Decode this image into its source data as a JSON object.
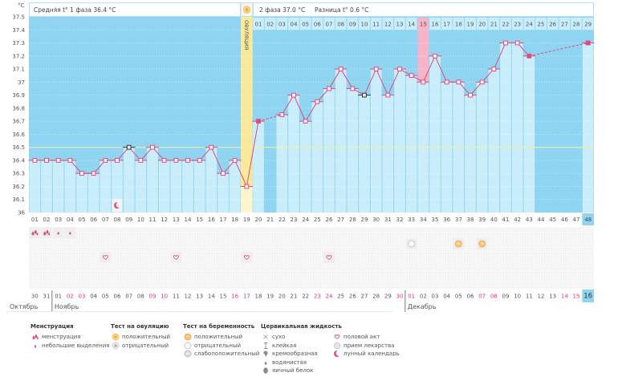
{
  "header": {
    "unit": "°C",
    "phase1_summary": "Средняя t° 1 фаза 36.4 °C",
    "phase2_summary": "2 фаза 37.0 °C",
    "difference": "Разница t° 0.6 °C",
    "ovulation_icon": "sun-icon"
  },
  "colors": {
    "plot_bg": "#8fd5f2",
    "bar": "#c9edfb",
    "ovulation": "#fbe99b",
    "ovulation_light": "#fdf6cc",
    "highlight": "#f7b3c7",
    "line": "#e5487e",
    "excluded": "#333333",
    "coverline": "#f1ee9e",
    "weekend": "#e8336e",
    "text": "#555555"
  },
  "chart_data": {
    "type": "line",
    "title": "",
    "xlabel": "",
    "ylabel": "°C",
    "ylim": [
      36,
      37.5
    ],
    "grid": true,
    "yticks": [
      "37.5",
      "37.4",
      "37.3",
      "37.2",
      "37.1",
      "37",
      "36.9",
      "36.8",
      "36.7",
      "36.6",
      "36.5",
      "36.4",
      "36.3",
      "36.2",
      "36.1",
      "36"
    ],
    "categories": [
      "01",
      "02",
      "03",
      "04",
      "05",
      "06",
      "07",
      "08",
      "09",
      "10",
      "11",
      "12",
      "13",
      "14",
      "15",
      "16",
      "17",
      "18",
      "19",
      "20",
      "21",
      "22",
      "23",
      "24",
      "25",
      "26",
      "27",
      "28",
      "29",
      "30",
      "31",
      "32",
      "33",
      "34",
      "35",
      "36",
      "37",
      "38",
      "39",
      "40",
      "41",
      "42",
      "43",
      "44",
      "45",
      "46",
      "47",
      "48"
    ],
    "series": [
      {
        "name": "°C",
        "values": [
          36.4,
          36.4,
          36.4,
          36.4,
          36.3,
          36.3,
          36.4,
          36.4,
          36.5,
          36.4,
          36.5,
          36.4,
          36.4,
          36.4,
          36.4,
          36.5,
          36.3,
          36.4,
          36.2,
          36.7,
          null,
          36.75,
          36.9,
          36.7,
          36.85,
          36.95,
          37.1,
          36.95,
          36.9,
          37.1,
          36.9,
          37.1,
          37.05,
          37.0,
          37.2,
          37.0,
          37.0,
          36.9,
          37.0,
          37.1,
          37.3,
          37.3,
          37.2,
          null,
          null,
          null,
          null,
          37.3
        ]
      }
    ],
    "coverline": 36.5,
    "ovulation_day": 19,
    "ovulation_label": "ОВУЛЯЦИЯ",
    "excluded_days": [
      9,
      29
    ],
    "phase2_start_day": 20,
    "phase2_day_labels": [
      "01",
      "02",
      "03",
      "04",
      "05",
      "06",
      "07",
      "08",
      "09",
      "10",
      "11",
      "12",
      "13",
      "14",
      "15",
      "16",
      "17",
      "18",
      "19",
      "20",
      "21",
      "22",
      "23",
      "24",
      "25",
      "26",
      "27",
      "28",
      "29"
    ],
    "highlighted_day": 34,
    "current_day": 48
  },
  "markers": {
    "menstruation": [
      {
        "day": 1,
        "type": "heavy"
      },
      {
        "day": 2,
        "type": "heavy"
      },
      {
        "day": 3,
        "type": "light"
      },
      {
        "day": 4,
        "type": "light"
      }
    ],
    "tests": [
      {
        "day": 33,
        "type": "pregnancy-negative"
      },
      {
        "day": 37,
        "type": "pregnancy-positive"
      },
      {
        "day": 39,
        "type": "pregnancy-positive"
      }
    ],
    "intercourse": [
      7,
      13,
      19,
      26
    ],
    "moon": [
      8
    ]
  },
  "calendar": {
    "dates": [
      {
        "d": "30"
      },
      {
        "d": "31"
      },
      {
        "d": "01"
      },
      {
        "d": "02",
        "weekend": true
      },
      {
        "d": "03",
        "weekend": true
      },
      {
        "d": "04"
      },
      {
        "d": "05"
      },
      {
        "d": "06"
      },
      {
        "d": "07"
      },
      {
        "d": "08"
      },
      {
        "d": "09",
        "weekend": true
      },
      {
        "d": "10",
        "weekend": true
      },
      {
        "d": "11"
      },
      {
        "d": "12"
      },
      {
        "d": "13"
      },
      {
        "d": "14"
      },
      {
        "d": "15"
      },
      {
        "d": "16",
        "weekend": true
      },
      {
        "d": "17",
        "weekend": true
      },
      {
        "d": "18"
      },
      {
        "d": "19"
      },
      {
        "d": "20"
      },
      {
        "d": "21"
      },
      {
        "d": "22"
      },
      {
        "d": "23",
        "weekend": true
      },
      {
        "d": "24",
        "weekend": true
      },
      {
        "d": "25"
      },
      {
        "d": "26"
      },
      {
        "d": "27"
      },
      {
        "d": "28"
      },
      {
        "d": "29"
      },
      {
        "d": "30",
        "weekend": true
      },
      {
        "d": "01",
        "weekend": true
      },
      {
        "d": "02"
      },
      {
        "d": "03"
      },
      {
        "d": "04"
      },
      {
        "d": "05"
      },
      {
        "d": "06"
      },
      {
        "d": "07",
        "weekend": true
      },
      {
        "d": "08",
        "weekend": true
      },
      {
        "d": "09"
      },
      {
        "d": "10"
      },
      {
        "d": "11"
      },
      {
        "d": "12"
      },
      {
        "d": "13"
      },
      {
        "d": "14",
        "weekend": true
      },
      {
        "d": "15",
        "weekend": true
      },
      {
        "d": "16"
      }
    ],
    "months": [
      {
        "label": "Октябрь",
        "start_day": 1
      },
      {
        "label": "Ноябрь",
        "start_day": 3
      },
      {
        "label": "Декабрь",
        "start_day": 33
      }
    ],
    "today_day": 48
  },
  "legend": [
    {
      "title": "Менструация",
      "items": [
        {
          "icon": "menstruation-heavy",
          "label": "менструация"
        },
        {
          "icon": "menstruation-light",
          "label": "небольшие выделения"
        }
      ]
    },
    {
      "title": "Тест на овуляцию",
      "items": [
        {
          "icon": "ovulation-test-positive",
          "label": "положительный"
        },
        {
          "icon": "ovulation-test-negative",
          "label": "отрицательный"
        }
      ]
    },
    {
      "title": "Тест на беременность",
      "items": [
        {
          "icon": "pregnancy-test-positive",
          "label": "положительный"
        },
        {
          "icon": "pregnancy-test-negative",
          "label": "отрицательный"
        },
        {
          "icon": "pregnancy-test-weak",
          "label": "слабоположительный"
        }
      ]
    },
    {
      "title": "Цервикальная жидкость",
      "items": [
        {
          "icon": "cervical-dry",
          "label": "сухо"
        },
        {
          "icon": "cervical-sticky",
          "label": "клейкая"
        },
        {
          "icon": "cervical-creamy",
          "label": "кремообразная"
        },
        {
          "icon": "cervical-watery",
          "label": "водянистая"
        },
        {
          "icon": "cervical-egg-white",
          "label": "яичный белок"
        }
      ]
    },
    {
      "title": "",
      "items": [
        {
          "icon": "intercourse",
          "label": "половой акт"
        },
        {
          "icon": "medication",
          "label": "прием лекарства"
        },
        {
          "icon": "moon",
          "label": "лунный календарь"
        }
      ]
    }
  ]
}
